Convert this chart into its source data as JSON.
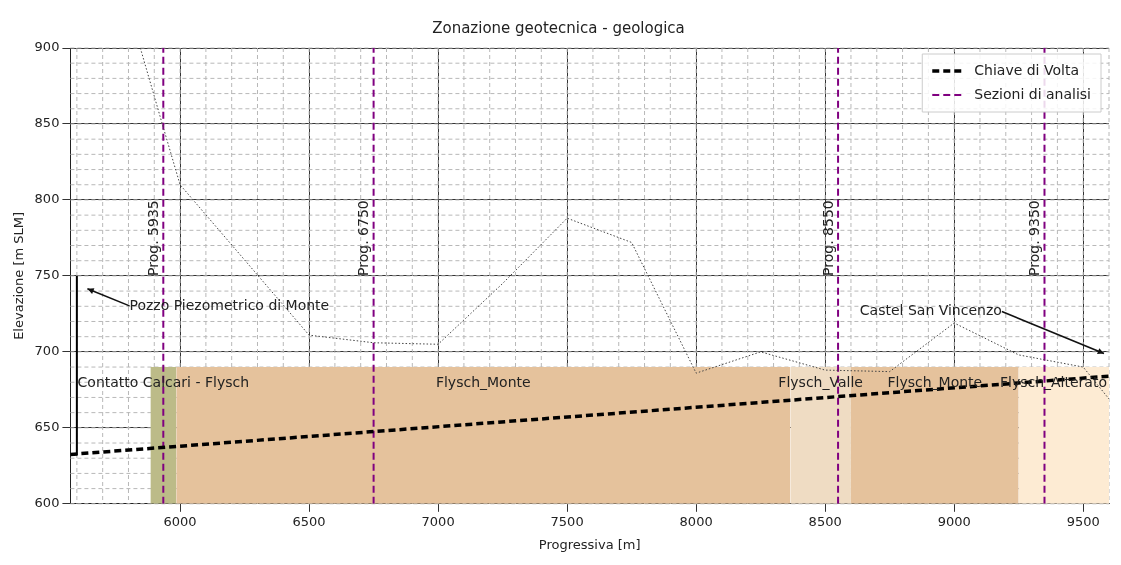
{
  "chart_data": {
    "type": "line",
    "title": "Zonazione geotecnica - geologica",
    "xlabel": "Progressiva [m]",
    "ylabel": "Elevazione [m SLM]",
    "xlim": [
      5575,
      9600
    ],
    "xticks": [
      6000,
      6500,
      7000,
      7500,
      8000,
      8500,
      9000,
      9500
    ],
    "ylim": [
      600,
      900
    ],
    "yticks": [
      600,
      650,
      700,
      750,
      800,
      850,
      900
    ],
    "grid": true,
    "legend": "top right",
    "marker": "none",
    "series": [
      {
        "type": "area",
        "name": "Contatto Calcari - Flysch",
        "color": "#bcbb88",
        "x": [
          5885,
          5985
        ],
        "values": [
          690,
          690
        ]
      },
      {
        "type": "area",
        "name": "Flysch_Monte",
        "color": "#e5c29c",
        "x": [
          5985,
          8365
        ],
        "values": [
          690,
          690
        ]
      },
      {
        "type": "area",
        "name": "Flysch_Valle",
        "color": "#efdcc3",
        "x": [
          8365,
          8600
        ],
        "values": [
          690,
          690
        ]
      },
      {
        "type": "area",
        "name": "Flysch_Monte",
        "color": "#e5c29c",
        "x": [
          8600,
          9250
        ],
        "values": [
          690,
          690
        ]
      },
      {
        "type": "area",
        "name": "Flysch_Alterato",
        "color": "#fdebd3",
        "x": [
          9250,
          9600
        ],
        "values": [
          690,
          690
        ]
      },
      {
        "color": "#444444",
        "line_style": "dotted",
        "x": [
          5846,
          5931,
          6000,
          6500,
          6750,
          7000,
          7250,
          7500,
          7750,
          8000,
          8250,
          8500,
          8750,
          9000,
          9250,
          9500,
          9600
        ],
        "values": [
          900,
          850,
          810,
          711,
          706,
          705,
          745,
          788,
          772,
          686,
          700,
          688,
          687,
          719,
          698,
          690,
          669
        ]
      },
      {
        "color": "#000000",
        "line_style": "solid",
        "x": [
          5600,
          5600
        ],
        "values": [
          632,
          750
        ]
      },
      {
        "name": "Chiave di Volta",
        "color": "#000000",
        "line_style": "dashed",
        "x": [
          5575,
          9600
        ],
        "values": [
          632.5,
          684
        ]
      },
      {
        "name": "Sezioni di analisi",
        "color": "#800080",
        "line_style": "dashed",
        "x": [
          5935,
          5935,
          null,
          6750,
          6750,
          null,
          8550,
          8550,
          null,
          9350,
          9350
        ],
        "values": [
          600,
          900,
          null,
          600,
          900,
          null,
          600,
          900,
          null,
          600,
          900
        ]
      }
    ],
    "annotations": [
      "Pozzo Piezometrico di Monte",
      "Castel San Vincenzo",
      {
        "text": "Prog. 5935",
        "x": 5935,
        "y": 750
      },
      {
        "text": "Prog. 6750",
        "x": 6750,
        "y": 750
      },
      {
        "text": "Prog. 8550",
        "x": 8550,
        "y": 750
      },
      {
        "text": "Prog. 9350",
        "x": 9350,
        "y": 750
      }
    ]
  }
}
